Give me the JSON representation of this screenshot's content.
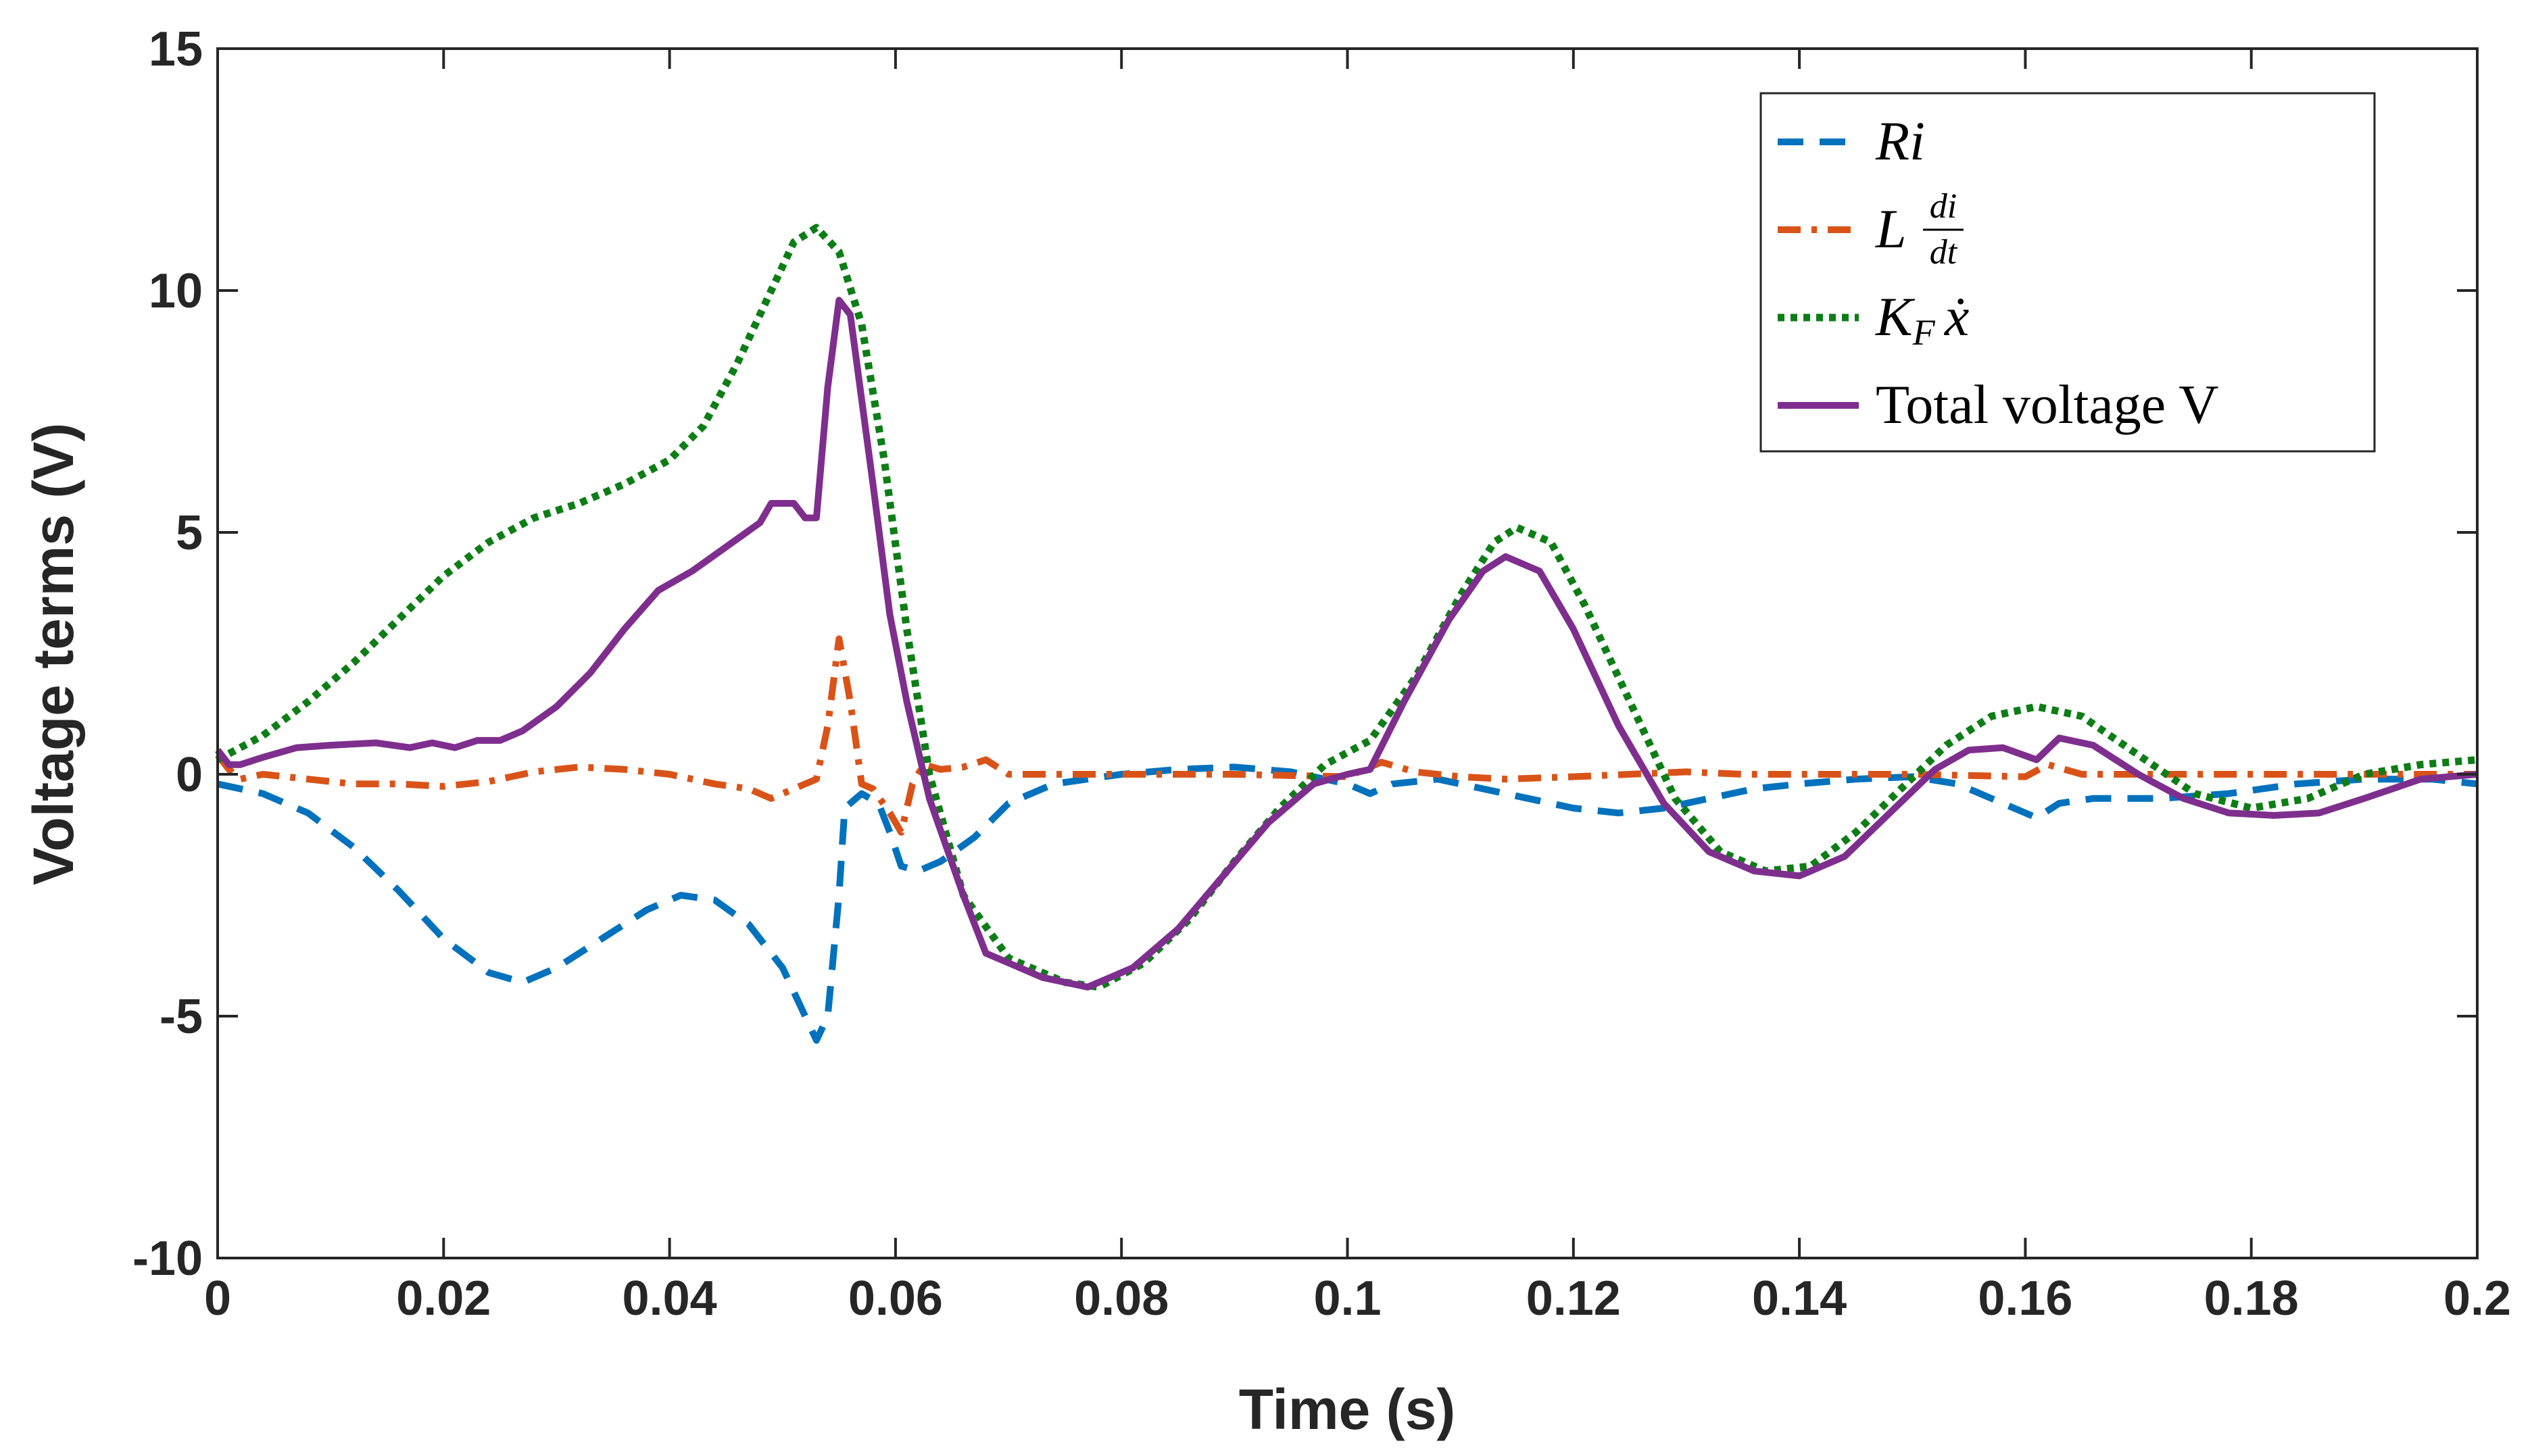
{
  "chart_data": {
    "type": "line",
    "title": "",
    "xlabel": "Time (s)",
    "ylabel": "Voltage terms (V)",
    "xlim": [
      0,
      0.2
    ],
    "ylim": [
      -10,
      15
    ],
    "xticks": [
      0,
      0.02,
      0.04,
      0.06,
      0.08,
      0.1,
      0.12,
      0.14,
      0.16,
      0.18,
      0.2
    ],
    "xtick_labels": [
      "0",
      "0.02",
      "0.04",
      "0.06",
      "0.08",
      "0.1",
      "0.12",
      "0.14",
      "0.16",
      "0.18",
      "0.2"
    ],
    "yticks": [
      -10,
      -5,
      0,
      5,
      10,
      15
    ],
    "ytick_labels": [
      "-10",
      "-5",
      "0",
      "5",
      "10",
      "15"
    ],
    "grid": false,
    "legend_position": "top-right",
    "series": [
      {
        "name": "Ri",
        "legend_label": {
          "main": "Ri"
        },
        "color": "#0072BD",
        "style": "dashed",
        "points": [
          [
            0,
            -0.2
          ],
          [
            0.004,
            -0.4
          ],
          [
            0.008,
            -0.8
          ],
          [
            0.012,
            -1.5
          ],
          [
            0.016,
            -2.4
          ],
          [
            0.02,
            -3.4
          ],
          [
            0.024,
            -4.1
          ],
          [
            0.027,
            -4.3
          ],
          [
            0.03,
            -4.0
          ],
          [
            0.034,
            -3.4
          ],
          [
            0.038,
            -2.8
          ],
          [
            0.041,
            -2.5
          ],
          [
            0.044,
            -2.6
          ],
          [
            0.047,
            -3.1
          ],
          [
            0.05,
            -4.0
          ],
          [
            0.052,
            -5.0
          ],
          [
            0.053,
            -5.5
          ],
          [
            0.054,
            -5.0
          ],
          [
            0.055,
            -2.5
          ],
          [
            0.0555,
            -0.7
          ],
          [
            0.057,
            -0.4
          ],
          [
            0.0585,
            -0.6
          ],
          [
            0.0595,
            -1.2
          ],
          [
            0.0605,
            -1.9
          ],
          [
            0.062,
            -2.0
          ],
          [
            0.064,
            -1.8
          ],
          [
            0.067,
            -1.3
          ],
          [
            0.07,
            -0.6
          ],
          [
            0.074,
            -0.2
          ],
          [
            0.08,
            0.0
          ],
          [
            0.085,
            0.1
          ],
          [
            0.09,
            0.15
          ],
          [
            0.095,
            0.05
          ],
          [
            0.1,
            -0.2
          ],
          [
            0.102,
            -0.4
          ],
          [
            0.104,
            -0.2
          ],
          [
            0.108,
            -0.1
          ],
          [
            0.112,
            -0.3
          ],
          [
            0.116,
            -0.5
          ],
          [
            0.12,
            -0.7
          ],
          [
            0.124,
            -0.8
          ],
          [
            0.128,
            -0.7
          ],
          [
            0.132,
            -0.5
          ],
          [
            0.136,
            -0.3
          ],
          [
            0.14,
            -0.2
          ],
          [
            0.145,
            -0.1
          ],
          [
            0.15,
            -0.05
          ],
          [
            0.154,
            -0.2
          ],
          [
            0.158,
            -0.6
          ],
          [
            0.161,
            -0.9
          ],
          [
            0.163,
            -0.6
          ],
          [
            0.166,
            -0.5
          ],
          [
            0.172,
            -0.5
          ],
          [
            0.178,
            -0.4
          ],
          [
            0.184,
            -0.2
          ],
          [
            0.19,
            -0.1
          ],
          [
            0.196,
            -0.1
          ],
          [
            0.2,
            -0.2
          ]
        ]
      },
      {
        "name": "L di/dt",
        "legend_label": {
          "main": "L",
          "numerator": "di",
          "denominator": "dt"
        },
        "color": "#D95319",
        "style": "dashdot",
        "points": [
          [
            0,
            0.4
          ],
          [
            0.001,
            0.1
          ],
          [
            0.002,
            -0.1
          ],
          [
            0.004,
            0.0
          ],
          [
            0.008,
            -0.1
          ],
          [
            0.012,
            -0.2
          ],
          [
            0.016,
            -0.2
          ],
          [
            0.02,
            -0.25
          ],
          [
            0.024,
            -0.15
          ],
          [
            0.028,
            0.05
          ],
          [
            0.032,
            0.15
          ],
          [
            0.036,
            0.1
          ],
          [
            0.04,
            0.0
          ],
          [
            0.044,
            -0.2
          ],
          [
            0.047,
            -0.3
          ],
          [
            0.049,
            -0.5
          ],
          [
            0.051,
            -0.3
          ],
          [
            0.053,
            -0.1
          ],
          [
            0.054,
            1.0
          ],
          [
            0.055,
            2.8
          ],
          [
            0.056,
            1.5
          ],
          [
            0.057,
            -0.2
          ],
          [
            0.058,
            -0.3
          ],
          [
            0.0595,
            -0.8
          ],
          [
            0.0605,
            -1.2
          ],
          [
            0.0615,
            -0.2
          ],
          [
            0.0625,
            0.2
          ],
          [
            0.064,
            0.1
          ],
          [
            0.066,
            0.15
          ],
          [
            0.068,
            0.3
          ],
          [
            0.07,
            0.0
          ],
          [
            0.075,
            0.0
          ],
          [
            0.08,
            0.0
          ],
          [
            0.09,
            0.0
          ],
          [
            0.1,
            -0.05
          ],
          [
            0.103,
            0.25
          ],
          [
            0.106,
            0.05
          ],
          [
            0.11,
            -0.05
          ],
          [
            0.114,
            -0.1
          ],
          [
            0.12,
            -0.05
          ],
          [
            0.125,
            0.0
          ],
          [
            0.13,
            0.05
          ],
          [
            0.135,
            0.0
          ],
          [
            0.14,
            0.0
          ],
          [
            0.15,
            0.0
          ],
          [
            0.16,
            -0.05
          ],
          [
            0.162,
            0.2
          ],
          [
            0.165,
            0.0
          ],
          [
            0.17,
            0.0
          ],
          [
            0.18,
            0.0
          ],
          [
            0.19,
            0.0
          ],
          [
            0.2,
            0.0
          ]
        ]
      },
      {
        "name": "K_F x-dot",
        "legend_label": {
          "main": "K",
          "subscript": "F",
          "variable": "ẋ"
        },
        "color": "#0E7D17",
        "style": "dotted",
        "points": [
          [
            0,
            0.3
          ],
          [
            0.004,
            0.8
          ],
          [
            0.008,
            1.5
          ],
          [
            0.012,
            2.3
          ],
          [
            0.016,
            3.2
          ],
          [
            0.02,
            4.1
          ],
          [
            0.024,
            4.8
          ],
          [
            0.028,
            5.3
          ],
          [
            0.032,
            5.6
          ],
          [
            0.036,
            6.0
          ],
          [
            0.04,
            6.5
          ],
          [
            0.043,
            7.2
          ],
          [
            0.046,
            8.5
          ],
          [
            0.049,
            10.0
          ],
          [
            0.051,
            11.0
          ],
          [
            0.053,
            11.3
          ],
          [
            0.055,
            10.8
          ],
          [
            0.057,
            9.3
          ],
          [
            0.059,
            6.5
          ],
          [
            0.061,
            3.0
          ],
          [
            0.063,
            0.0
          ],
          [
            0.066,
            -2.5
          ],
          [
            0.07,
            -3.8
          ],
          [
            0.075,
            -4.3
          ],
          [
            0.078,
            -4.4
          ],
          [
            0.082,
            -3.9
          ],
          [
            0.086,
            -3.0
          ],
          [
            0.09,
            -1.8
          ],
          [
            0.094,
            -0.7
          ],
          [
            0.098,
            0.2
          ],
          [
            0.102,
            0.7
          ],
          [
            0.106,
            2.0
          ],
          [
            0.11,
            3.7
          ],
          [
            0.113,
            4.8
          ],
          [
            0.115,
            5.1
          ],
          [
            0.118,
            4.8
          ],
          [
            0.121,
            3.5
          ],
          [
            0.125,
            1.5
          ],
          [
            0.129,
            -0.5
          ],
          [
            0.133,
            -1.6
          ],
          [
            0.137,
            -2.0
          ],
          [
            0.141,
            -1.9
          ],
          [
            0.145,
            -1.2
          ],
          [
            0.149,
            -0.3
          ],
          [
            0.153,
            0.6
          ],
          [
            0.157,
            1.2
          ],
          [
            0.161,
            1.4
          ],
          [
            0.165,
            1.2
          ],
          [
            0.17,
            0.4
          ],
          [
            0.175,
            -0.4
          ],
          [
            0.18,
            -0.7
          ],
          [
            0.185,
            -0.5
          ],
          [
            0.19,
            0.0
          ],
          [
            0.195,
            0.2
          ],
          [
            0.2,
            0.3
          ]
        ]
      },
      {
        "name": "Total voltage V",
        "legend_label": {
          "main": "Total voltage V"
        },
        "color": "#7E2F8E",
        "style": "solid",
        "points": [
          [
            0,
            0.5
          ],
          [
            0.001,
            0.2
          ],
          [
            0.002,
            0.2
          ],
          [
            0.004,
            0.35
          ],
          [
            0.007,
            0.55
          ],
          [
            0.01,
            0.6
          ],
          [
            0.014,
            0.65
          ],
          [
            0.017,
            0.55
          ],
          [
            0.019,
            0.65
          ],
          [
            0.021,
            0.55
          ],
          [
            0.023,
            0.7
          ],
          [
            0.025,
            0.7
          ],
          [
            0.027,
            0.9
          ],
          [
            0.03,
            1.4
          ],
          [
            0.033,
            2.1
          ],
          [
            0.036,
            3.0
          ],
          [
            0.039,
            3.8
          ],
          [
            0.042,
            4.2
          ],
          [
            0.045,
            4.7
          ],
          [
            0.048,
            5.2
          ],
          [
            0.049,
            5.6
          ],
          [
            0.051,
            5.6
          ],
          [
            0.052,
            5.3
          ],
          [
            0.053,
            5.3
          ],
          [
            0.054,
            8.0
          ],
          [
            0.055,
            9.8
          ],
          [
            0.056,
            9.5
          ],
          [
            0.058,
            6.0
          ],
          [
            0.0595,
            3.3
          ],
          [
            0.061,
            1.5
          ],
          [
            0.063,
            -0.5
          ],
          [
            0.066,
            -2.5
          ],
          [
            0.068,
            -3.7
          ],
          [
            0.07,
            -3.9
          ],
          [
            0.073,
            -4.2
          ],
          [
            0.077,
            -4.4
          ],
          [
            0.081,
            -4.0
          ],
          [
            0.085,
            -3.2
          ],
          [
            0.089,
            -2.1
          ],
          [
            0.093,
            -1.0
          ],
          [
            0.097,
            -0.2
          ],
          [
            0.1,
            0.0
          ],
          [
            0.102,
            0.1
          ],
          [
            0.105,
            1.5
          ],
          [
            0.109,
            3.2
          ],
          [
            0.112,
            4.2
          ],
          [
            0.114,
            4.5
          ],
          [
            0.117,
            4.2
          ],
          [
            0.12,
            3.0
          ],
          [
            0.124,
            1.0
          ],
          [
            0.128,
            -0.6
          ],
          [
            0.132,
            -1.6
          ],
          [
            0.136,
            -2.0
          ],
          [
            0.14,
            -2.1
          ],
          [
            0.144,
            -1.7
          ],
          [
            0.148,
            -0.8
          ],
          [
            0.152,
            0.1
          ],
          [
            0.155,
            0.5
          ],
          [
            0.158,
            0.55
          ],
          [
            0.161,
            0.3
          ],
          [
            0.163,
            0.75
          ],
          [
            0.166,
            0.6
          ],
          [
            0.17,
            0.0
          ],
          [
            0.174,
            -0.5
          ],
          [
            0.178,
            -0.8
          ],
          [
            0.182,
            -0.85
          ],
          [
            0.186,
            -0.8
          ],
          [
            0.19,
            -0.5
          ],
          [
            0.195,
            -0.1
          ],
          [
            0.2,
            0.0
          ]
        ]
      }
    ]
  }
}
